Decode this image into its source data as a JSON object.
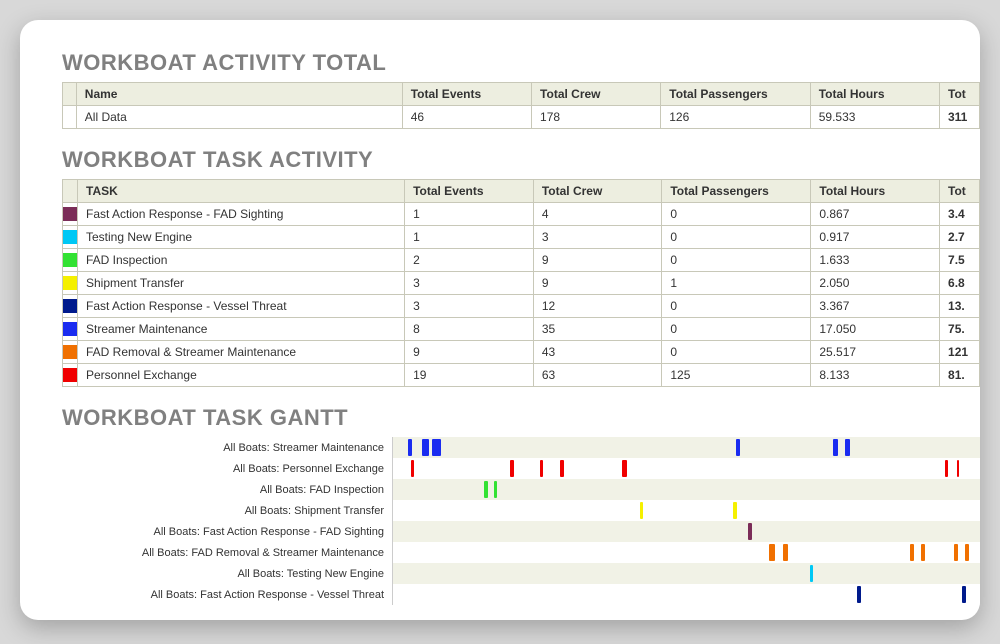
{
  "colors": {
    "heading": "#808080",
    "th_bg": "#edeee0",
    "border": "#c8c8b8",
    "gantt_stripe": "#f1f2e6"
  },
  "total_section": {
    "title": "WORKBOAT ACTIVITY TOTAL",
    "headers": {
      "name": "Name",
      "events": "Total Events",
      "crew": "Total Crew",
      "pax": "Total Passengers",
      "hours": "Total Hours",
      "cut": "Tot"
    },
    "row": {
      "name": "All Data",
      "events": "46",
      "crew": "178",
      "pax": "126",
      "hours": "59.533",
      "cut": "311"
    }
  },
  "task_section": {
    "title": "WORKBOAT TASK ACTIVITY",
    "headers": {
      "name": "TASK",
      "events": "Total Events",
      "crew": "Total Crew",
      "pax": "Total Passengers",
      "hours": "Total Hours",
      "cut": "Tot"
    },
    "rows": [
      {
        "color": "#7b2d58",
        "name": "Fast Action Response - FAD Sighting",
        "events": "1",
        "crew": "4",
        "pax": "0",
        "hours": "0.867",
        "cut": "3.4"
      },
      {
        "color": "#00c8f5",
        "name": "Testing New Engine",
        "events": "1",
        "crew": "3",
        "pax": "0",
        "hours": "0.917",
        "cut": "2.7"
      },
      {
        "color": "#33e233",
        "name": "FAD Inspection",
        "events": "2",
        "crew": "9",
        "pax": "0",
        "hours": "1.633",
        "cut": "7.5"
      },
      {
        "color": "#f5f000",
        "name": "Shipment Transfer",
        "events": "3",
        "crew": "9",
        "pax": "1",
        "hours": "2.050",
        "cut": "6.8"
      },
      {
        "color": "#001a8c",
        "name": "Fast Action Response - Vessel Threat",
        "events": "3",
        "crew": "12",
        "pax": "0",
        "hours": "3.367",
        "cut": "13."
      },
      {
        "color": "#1a2cf0",
        "name": "Streamer Maintenance",
        "events": "8",
        "crew": "35",
        "pax": "0",
        "hours": "17.050",
        "cut": "75."
      },
      {
        "color": "#f07000",
        "name": "FAD Removal & Streamer Maintenance",
        "events": "9",
        "crew": "43",
        "pax": "0",
        "hours": "25.517",
        "cut": "121"
      },
      {
        "color": "#f00000",
        "name": "Personnel Exchange",
        "events": "19",
        "crew": "63",
        "pax": "125",
        "hours": "8.133",
        "cut": "81."
      }
    ]
  },
  "gantt_section": {
    "title": "WORKBOAT TASK GANTT",
    "x_range": 100,
    "rows": [
      {
        "label": "All Boats: Streamer Maintenance",
        "color": "#1a2cf0",
        "bars": [
          {
            "x": 2.5,
            "w": 0.7
          },
          {
            "x": 5.0,
            "w": 1.2
          },
          {
            "x": 6.6,
            "w": 1.6
          },
          {
            "x": 58.5,
            "w": 0.7
          },
          {
            "x": 75.0,
            "w": 0.8
          },
          {
            "x": 77.0,
            "w": 0.8
          }
        ]
      },
      {
        "label": "All Boats: Personnel Exchange",
        "color": "#f00000",
        "bars": [
          {
            "x": 3.0,
            "w": 0.6
          },
          {
            "x": 20.0,
            "w": 0.6
          },
          {
            "x": 25.0,
            "w": 0.6
          },
          {
            "x": 28.5,
            "w": 0.6
          },
          {
            "x": 39.0,
            "w": 0.8
          },
          {
            "x": 94.0,
            "w": 0.6
          },
          {
            "x": 96.0,
            "w": 0.5
          }
        ]
      },
      {
        "label": "All Boats: FAD Inspection",
        "color": "#33e233",
        "bars": [
          {
            "x": 15.5,
            "w": 0.6
          },
          {
            "x": 17.2,
            "w": 0.6
          }
        ]
      },
      {
        "label": "All Boats: Shipment Transfer",
        "color": "#f5f000",
        "bars": [
          {
            "x": 42.0,
            "w": 0.6
          },
          {
            "x": 58.0,
            "w": 0.6
          }
        ]
      },
      {
        "label": "All Boats: Fast Action Response - FAD Sighting",
        "color": "#7b2d58",
        "bars": [
          {
            "x": 60.5,
            "w": 0.6
          }
        ]
      },
      {
        "label": "All Boats: FAD Removal & Streamer Maintenance",
        "color": "#f07000",
        "bars": [
          {
            "x": 64.0,
            "w": 1.0
          },
          {
            "x": 66.5,
            "w": 0.8
          },
          {
            "x": 88.0,
            "w": 0.8
          },
          {
            "x": 90.0,
            "w": 0.7
          },
          {
            "x": 95.5,
            "w": 0.7
          },
          {
            "x": 97.5,
            "w": 0.7
          }
        ]
      },
      {
        "label": "All Boats: Testing New Engine",
        "color": "#00c8f5",
        "bars": [
          {
            "x": 71.0,
            "w": 0.6
          }
        ]
      },
      {
        "label": "All Boats: Fast Action Response - Vessel Threat",
        "color": "#001a8c",
        "bars": [
          {
            "x": 79.0,
            "w": 0.7
          },
          {
            "x": 97.0,
            "w": 0.7
          }
        ]
      }
    ]
  }
}
